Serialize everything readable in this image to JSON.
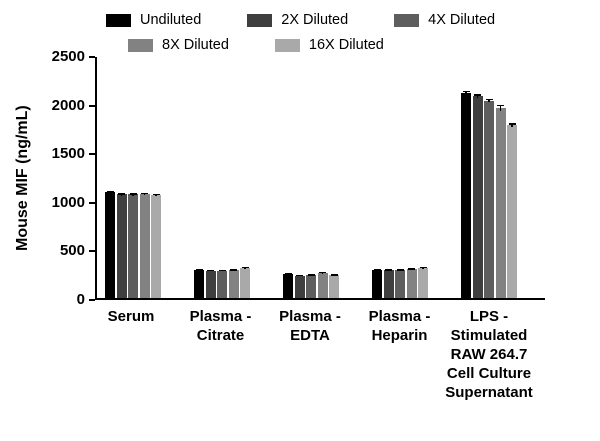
{
  "chart_data": {
    "type": "bar",
    "title": "",
    "xlabel": "",
    "ylabel": "Mouse MIF (ng/mL)",
    "ylim": [
      0,
      2500
    ],
    "yticks": [
      0,
      500,
      1000,
      1500,
      2000,
      2500
    ],
    "grid": false,
    "legend_position": "top",
    "categories": [
      "Serum",
      "Plasma -\nCitrate",
      "Plasma -\nEDTA",
      "Plasma -\nHeparin",
      "LPS -\nStimulated\nRAW 264.7\nCell Culture\nSupernatant"
    ],
    "series": [
      {
        "name": "Undiluted",
        "color": "#000000",
        "values": [
          1090,
          290,
          245,
          290,
          2110
        ],
        "errors": [
          15,
          8,
          8,
          8,
          20
        ]
      },
      {
        "name": "2X Diluted",
        "color": "#3f3f3f",
        "values": [
          1065,
          283,
          230,
          290,
          2080
        ],
        "errors": [
          12,
          8,
          8,
          8,
          18
        ]
      },
      {
        "name": "4X Diluted",
        "color": "#5e5e5e",
        "values": [
          1065,
          283,
          232,
          290,
          2030
        ],
        "errors": [
          12,
          8,
          10,
          8,
          18
        ]
      },
      {
        "name": "8X Diluted",
        "color": "#828282",
        "values": [
          1072,
          290,
          258,
          297,
          1958
        ],
        "errors": [
          12,
          8,
          10,
          8,
          30
        ]
      },
      {
        "name": "16X Diluted",
        "color": "#a9a9a9",
        "values": [
          1062,
          312,
          235,
          310,
          1778
        ],
        "errors": [
          12,
          10,
          8,
          10,
          18
        ]
      }
    ]
  }
}
